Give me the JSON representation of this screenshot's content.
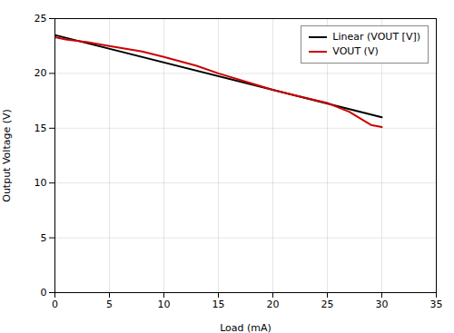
{
  "chart_data": {
    "type": "line",
    "xlabel": "Load (mA)",
    "ylabel": "Output Voltage (V)",
    "xlim": [
      0,
      35
    ],
    "ylim": [
      0,
      25
    ],
    "xticks": [
      0,
      5,
      10,
      15,
      20,
      25,
      30,
      35
    ],
    "yticks": [
      0,
      5,
      10,
      15,
      20,
      25
    ],
    "grid": true,
    "legend": "upper right",
    "series": [
      {
        "name": "Linear (VOUT [V])",
        "color": "#000000",
        "x": [
          0,
          30
        ],
        "values": [
          23.5,
          16.0
        ]
      },
      {
        "name": "VOUT (V)",
        "color": "#cc0000",
        "x": [
          0,
          1,
          3,
          5,
          8,
          10,
          13,
          15,
          18,
          20,
          22,
          25,
          27,
          29,
          30
        ],
        "values": [
          23.3,
          23.1,
          22.85,
          22.5,
          22.0,
          21.5,
          20.7,
          20.0,
          19.1,
          18.5,
          18.0,
          17.3,
          16.5,
          15.3,
          15.1
        ]
      }
    ]
  }
}
